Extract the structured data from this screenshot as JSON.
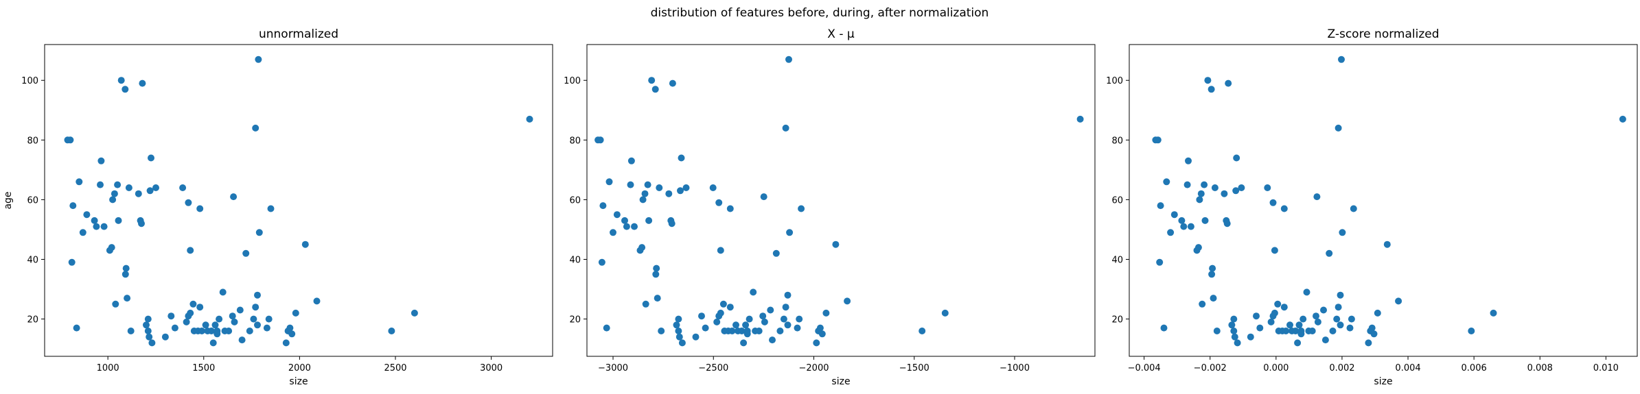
{
  "figure": {
    "suptitle": "distribution of features before, during, after normalization"
  },
  "chart_data": [
    {
      "type": "scatter",
      "title": "unnormalized",
      "xlabel": "size",
      "ylabel": "age",
      "xlim": [
        670,
        3320
      ],
      "ylim": [
        7.5,
        112
      ],
      "xticks": [
        {
          "value": 1000,
          "label": "1000"
        },
        {
          "value": 1500,
          "label": "1500"
        },
        {
          "value": 2000,
          "label": "2000"
        },
        {
          "value": 2500,
          "label": "2500"
        },
        {
          "value": 3000,
          "label": "3000"
        }
      ],
      "yticks": [
        {
          "value": 20,
          "label": "20"
        },
        {
          "value": 40,
          "label": "40"
        },
        {
          "value": 60,
          "label": "60"
        },
        {
          "value": 80,
          "label": "80"
        },
        {
          "value": 100,
          "label": "100"
        }
      ],
      "color": "#1f77b4",
      "points": [
        [
          790,
          80
        ],
        [
          804,
          80
        ],
        [
          812,
          39
        ],
        [
          818,
          58
        ],
        [
          837,
          17
        ],
        [
          850,
          66
        ],
        [
          870,
          49
        ],
        [
          890,
          55
        ],
        [
          930,
          53
        ],
        [
          940,
          51
        ],
        [
          965,
          73
        ],
        [
          960,
          65
        ],
        [
          980,
          51
        ],
        [
          1010,
          43
        ],
        [
          1020,
          44
        ],
        [
          1025,
          60
        ],
        [
          1035,
          62
        ],
        [
          1040,
          25
        ],
        [
          1050,
          65
        ],
        [
          1055,
          53
        ],
        [
          1070,
          100
        ],
        [
          1090,
          97
        ],
        [
          1092,
          35
        ],
        [
          1095,
          37
        ],
        [
          1100,
          27
        ],
        [
          1110,
          64
        ],
        [
          1120,
          16
        ],
        [
          1160,
          62
        ],
        [
          1170,
          53
        ],
        [
          1175,
          52
        ],
        [
          1180,
          99
        ],
        [
          1200,
          18
        ],
        [
          1210,
          20
        ],
        [
          1210,
          16
        ],
        [
          1215,
          14
        ],
        [
          1220,
          63
        ],
        [
          1225,
          74
        ],
        [
          1230,
          12
        ],
        [
          1250,
          64
        ],
        [
          1300,
          14
        ],
        [
          1330,
          21
        ],
        [
          1350,
          17
        ],
        [
          1390,
          64
        ],
        [
          1410,
          19
        ],
        [
          1420,
          21
        ],
        [
          1420,
          59
        ],
        [
          1430,
          22
        ],
        [
          1430,
          43
        ],
        [
          1445,
          25
        ],
        [
          1450,
          16
        ],
        [
          1470,
          16
        ],
        [
          1480,
          24
        ],
        [
          1480,
          57
        ],
        [
          1490,
          16
        ],
        [
          1510,
          18
        ],
        [
          1520,
          16
        ],
        [
          1540,
          16
        ],
        [
          1550,
          12
        ],
        [
          1560,
          18
        ],
        [
          1570,
          16
        ],
        [
          1570,
          15
        ],
        [
          1580,
          20
        ],
        [
          1600,
          29
        ],
        [
          1610,
          16
        ],
        [
          1630,
          16
        ],
        [
          1650,
          21
        ],
        [
          1655,
          61
        ],
        [
          1660,
          19
        ],
        [
          1690,
          23
        ],
        [
          1700,
          13
        ],
        [
          1720,
          42
        ],
        [
          1740,
          16
        ],
        [
          1760,
          20
        ],
        [
          1770,
          84
        ],
        [
          1770,
          24
        ],
        [
          1780,
          28
        ],
        [
          1780,
          18
        ],
        [
          1785,
          107
        ],
        [
          1790,
          49
        ],
        [
          1830,
          17
        ],
        [
          1840,
          20
        ],
        [
          1850,
          57
        ],
        [
          1930,
          12
        ],
        [
          1940,
          16
        ],
        [
          1950,
          17
        ],
        [
          1960,
          15
        ],
        [
          1980,
          22
        ],
        [
          2030,
          45
        ],
        [
          2090,
          26
        ],
        [
          2480,
          16
        ],
        [
          2600,
          22
        ],
        [
          3200,
          87
        ]
      ]
    },
    {
      "type": "scatter",
      "title": "X - μ",
      "xlabel": "size",
      "ylabel": "",
      "xlim": [
        -3130,
        -600
      ],
      "ylim": [
        7.5,
        112
      ],
      "xticks": [
        {
          "value": -3000,
          "label": "−3000"
        },
        {
          "value": -2500,
          "label": "−2500"
        },
        {
          "value": -2000,
          "label": "−2000"
        },
        {
          "value": -1500,
          "label": "−1500"
        },
        {
          "value": -1000,
          "label": "−1000"
        }
      ],
      "yticks": [
        {
          "value": 20,
          "label": "20"
        },
        {
          "value": 40,
          "label": "40"
        },
        {
          "value": 60,
          "label": "60"
        },
        {
          "value": 80,
          "label": "80"
        },
        {
          "value": 100,
          "label": "100"
        }
      ],
      "color": "#1f77b4",
      "points": [
        [
          -3075,
          80
        ],
        [
          -3063,
          80
        ],
        [
          -3055,
          39
        ],
        [
          -3050,
          58
        ],
        [
          -3032,
          17
        ],
        [
          -3019,
          66
        ],
        [
          -3000,
          49
        ],
        [
          -2980,
          55
        ],
        [
          -2942,
          53
        ],
        [
          -2932,
          51
        ],
        [
          -2908,
          73
        ],
        [
          -2913,
          65
        ],
        [
          -2894,
          51
        ],
        [
          -2865,
          43
        ],
        [
          -2856,
          44
        ],
        [
          -2851,
          60
        ],
        [
          -2841,
          62
        ],
        [
          -2837,
          25
        ],
        [
          -2827,
          65
        ],
        [
          -2822,
          53
        ],
        [
          -2808,
          100
        ],
        [
          -2789,
          97
        ],
        [
          -2787,
          35
        ],
        [
          -2784,
          37
        ],
        [
          -2779,
          27
        ],
        [
          -2770,
          64
        ],
        [
          -2760,
          16
        ],
        [
          -2722,
          62
        ],
        [
          -2712,
          53
        ],
        [
          -2707,
          52
        ],
        [
          -2703,
          99
        ],
        [
          -2684,
          18
        ],
        [
          -2674,
          20
        ],
        [
          -2674,
          16
        ],
        [
          -2669,
          14
        ],
        [
          -2665,
          63
        ],
        [
          -2660,
          74
        ],
        [
          -2655,
          12
        ],
        [
          -2636,
          64
        ],
        [
          -2588,
          14
        ],
        [
          -2559,
          21
        ],
        [
          -2540,
          17
        ],
        [
          -2502,
          64
        ],
        [
          -2483,
          19
        ],
        [
          -2473,
          21
        ],
        [
          -2473,
          59
        ],
        [
          -2464,
          22
        ],
        [
          -2464,
          43
        ],
        [
          -2450,
          25
        ],
        [
          -2445,
          16
        ],
        [
          -2426,
          16
        ],
        [
          -2416,
          24
        ],
        [
          -2416,
          57
        ],
        [
          -2407,
          16
        ],
        [
          -2388,
          18
        ],
        [
          -2378,
          16
        ],
        [
          -2359,
          16
        ],
        [
          -2350,
          12
        ],
        [
          -2340,
          18
        ],
        [
          -2331,
          16
        ],
        [
          -2331,
          15
        ],
        [
          -2321,
          20
        ],
        [
          -2302,
          29
        ],
        [
          -2292,
          16
        ],
        [
          -2273,
          16
        ],
        [
          -2254,
          21
        ],
        [
          -2249,
          61
        ],
        [
          -2245,
          19
        ],
        [
          -2216,
          23
        ],
        [
          -2207,
          13
        ],
        [
          -2187,
          42
        ],
        [
          -2168,
          16
        ],
        [
          -2149,
          20
        ],
        [
          -2140,
          84
        ],
        [
          -2140,
          24
        ],
        [
          -2130,
          28
        ],
        [
          -2130,
          18
        ],
        [
          -2125,
          107
        ],
        [
          -2121,
          49
        ],
        [
          -2082,
          17
        ],
        [
          -2073,
          20
        ],
        [
          -2063,
          57
        ],
        [
          -1987,
          12
        ],
        [
          -1977,
          16
        ],
        [
          -1968,
          17
        ],
        [
          -1958,
          15
        ],
        [
          -1939,
          22
        ],
        [
          -1891,
          45
        ],
        [
          -1834,
          26
        ],
        [
          -1461,
          16
        ],
        [
          -1346,
          22
        ],
        [
          -673,
          87
        ]
      ]
    },
    {
      "type": "scatter",
      "title": "Z-score normalized",
      "xlabel": "size",
      "ylabel": "",
      "xlim": [
        -0.00445,
        0.01095
      ],
      "ylim": [
        7.5,
        112
      ],
      "xticks": [
        {
          "value": -0.004,
          "label": "−0.004"
        },
        {
          "value": -0.002,
          "label": "−0.002"
        },
        {
          "value": 0.0,
          "label": "0.000"
        },
        {
          "value": 0.002,
          "label": "0.002"
        },
        {
          "value": 0.004,
          "label": "0.004"
        },
        {
          "value": 0.006,
          "label": "0.006"
        },
        {
          "value": 0.008,
          "label": "0.008"
        },
        {
          "value": 0.01,
          "label": "0.010"
        }
      ],
      "yticks": [
        {
          "value": 20,
          "label": "20"
        },
        {
          "value": 40,
          "label": "40"
        },
        {
          "value": 60,
          "label": "60"
        },
        {
          "value": 80,
          "label": "80"
        },
        {
          "value": 100,
          "label": "100"
        }
      ],
      "color": "#1f77b4",
      "points": [
        [
          -0.00365,
          80
        ],
        [
          -0.00358,
          80
        ],
        [
          -0.00353,
          39
        ],
        [
          -0.0035,
          58
        ],
        [
          -0.0034,
          17
        ],
        [
          -0.00332,
          66
        ],
        [
          -0.0032,
          49
        ],
        [
          -0.00308,
          55
        ],
        [
          -0.00286,
          53
        ],
        [
          -0.0028,
          51
        ],
        [
          -0.00266,
          73
        ],
        [
          -0.00269,
          65
        ],
        [
          -0.00258,
          51
        ],
        [
          -0.0024,
          43
        ],
        [
          -0.00235,
          44
        ],
        [
          -0.00232,
          60
        ],
        [
          -0.00227,
          62
        ],
        [
          -0.00224,
          25
        ],
        [
          -0.00218,
          65
        ],
        [
          -0.00215,
          53
        ],
        [
          -0.00207,
          100
        ],
        [
          -0.00196,
          97
        ],
        [
          -0.00195,
          35
        ],
        [
          -0.00193,
          37
        ],
        [
          -0.0019,
          27
        ],
        [
          -0.00185,
          64
        ],
        [
          -0.00179,
          16
        ],
        [
          -0.00157,
          62
        ],
        [
          -0.00151,
          53
        ],
        [
          -0.00148,
          52
        ],
        [
          -0.00145,
          99
        ],
        [
          -0.00134,
          18
        ],
        [
          -0.00128,
          20
        ],
        [
          -0.00128,
          16
        ],
        [
          -0.00125,
          14
        ],
        [
          -0.00122,
          63
        ],
        [
          -0.0012,
          74
        ],
        [
          -0.00117,
          12
        ],
        [
          -0.00105,
          64
        ],
        [
          -0.00077,
          14
        ],
        [
          -0.0006,
          21
        ],
        [
          -0.00049,
          17
        ],
        [
          -0.00026,
          64
        ],
        [
          -0.00015,
          19
        ],
        [
          -9e-05,
          21
        ],
        [
          -9e-05,
          59
        ],
        [
          -4e-05,
          22
        ],
        [
          -4e-05,
          43
        ],
        [
          5e-05,
          25
        ],
        [
          8e-05,
          16
        ],
        [
          0.00019,
          16
        ],
        [
          0.00025,
          24
        ],
        [
          0.00025,
          57
        ],
        [
          0.0003,
          16
        ],
        [
          0.00042,
          18
        ],
        [
          0.00048,
          16
        ],
        [
          0.00059,
          16
        ],
        [
          0.00065,
          12
        ],
        [
          0.0007,
          18
        ],
        [
          0.00076,
          16
        ],
        [
          0.00076,
          15
        ],
        [
          0.00082,
          20
        ],
        [
          0.00093,
          29
        ],
        [
          0.00099,
          16
        ],
        [
          0.0011,
          16
        ],
        [
          0.00121,
          21
        ],
        [
          0.00124,
          61
        ],
        [
          0.00127,
          19
        ],
        [
          0.00144,
          23
        ],
        [
          0.0015,
          13
        ],
        [
          0.00161,
          42
        ],
        [
          0.00172,
          16
        ],
        [
          0.00184,
          20
        ],
        [
          0.00189,
          84
        ],
        [
          0.00189,
          24
        ],
        [
          0.00195,
          28
        ],
        [
          0.00195,
          18
        ],
        [
          0.00198,
          107
        ],
        [
          0.00201,
          49
        ],
        [
          0.00224,
          17
        ],
        [
          0.00229,
          20
        ],
        [
          0.00235,
          57
        ],
        [
          0.0028,
          12
        ],
        [
          0.00286,
          16
        ],
        [
          0.00291,
          17
        ],
        [
          0.00297,
          15
        ],
        [
          0.00308,
          22
        ],
        [
          0.00337,
          45
        ],
        [
          0.00371,
          26
        ],
        [
          0.00592,
          16
        ],
        [
          0.00659,
          22
        ],
        [
          0.01051,
          87
        ]
      ]
    }
  ]
}
